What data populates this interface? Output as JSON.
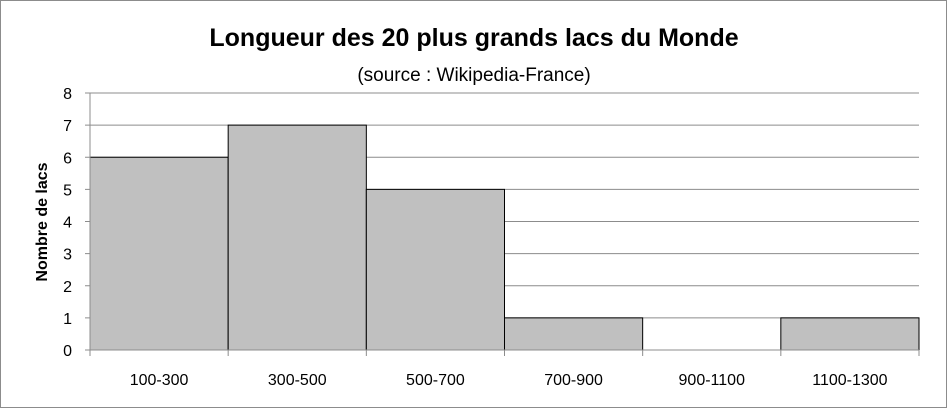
{
  "chart_data": {
    "type": "bar",
    "title": "Longueur des 20 plus grands lacs du Monde",
    "subtitle": "(source : Wikipedia-France)",
    "xlabel": "",
    "ylabel": "Nombre de lacs",
    "categories": [
      "100-300",
      "300-500",
      "500-700",
      "700-900",
      "900-1100",
      "1100-1300"
    ],
    "values": [
      6,
      7,
      5,
      1,
      0,
      1
    ],
    "ylim": [
      0,
      8
    ],
    "yticks": [
      "0",
      "1",
      "2",
      "3",
      "4",
      "5",
      "6",
      "7",
      "8"
    ],
    "grid": true,
    "legend": "none",
    "colors": {
      "bar_fill": "#c0c0c0",
      "bar_stroke": "#000000",
      "grid": "#8c8c8c",
      "axis": "#8c8c8c",
      "frame": "#8c8c8c"
    }
  }
}
